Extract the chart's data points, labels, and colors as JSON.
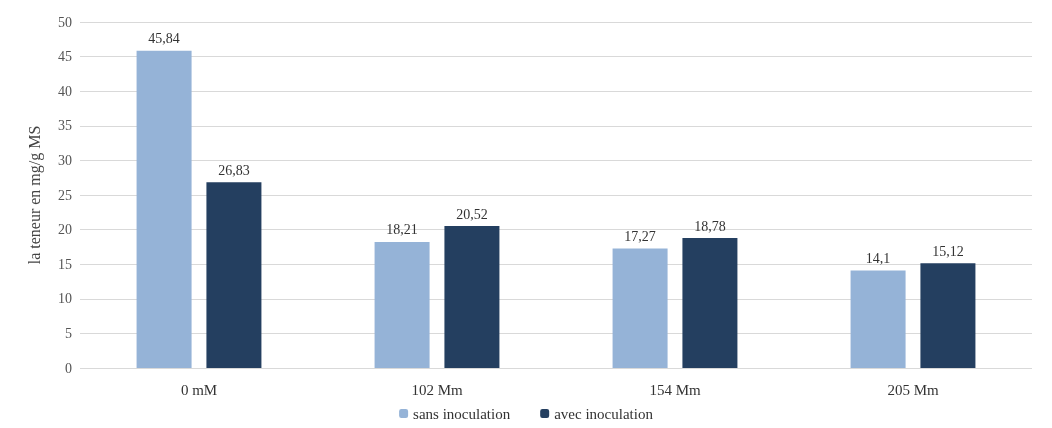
{
  "chart_data": {
    "type": "bar",
    "ylabel": "la teneur en mg/g MS",
    "categories": [
      "0 mM",
      "102 Mm",
      "154 Mm",
      "205 Mm"
    ],
    "series": [
      {
        "name": "sans inoculation",
        "color": "#95b3d7",
        "values": [
          45.84,
          18.21,
          17.27,
          14.1
        ],
        "value_labels": [
          "45,84",
          "18,21",
          "17,27",
          "14,1"
        ]
      },
      {
        "name": "avec inoculation",
        "color": "#243f60",
        "values": [
          26.83,
          20.52,
          18.78,
          15.12
        ],
        "value_labels": [
          "26,83",
          "20,52",
          "18,78",
          "15,12"
        ]
      }
    ],
    "ylim": [
      0,
      50
    ],
    "yticks": [
      0,
      5,
      10,
      15,
      20,
      25,
      30,
      35,
      40,
      45,
      50
    ],
    "grid": "y",
    "legend": "bottom"
  }
}
